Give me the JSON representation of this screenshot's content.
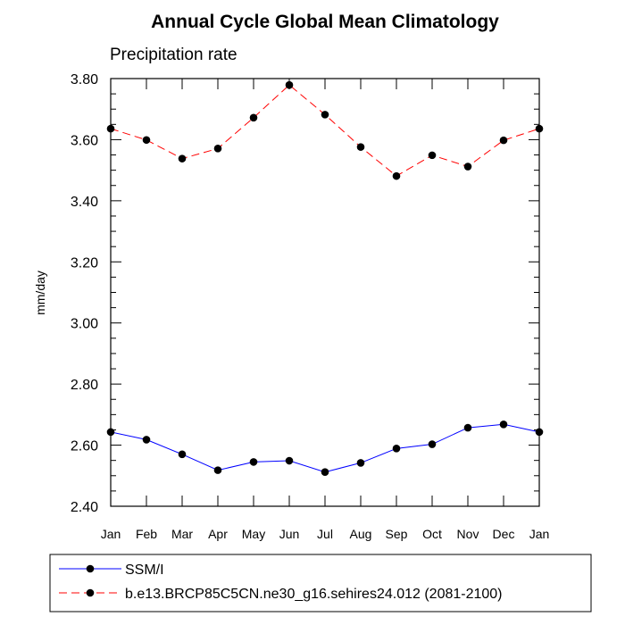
{
  "chart_data": {
    "type": "line",
    "title": "Annual Cycle Global Mean Climatology",
    "subtitle": "Precipitation rate",
    "ylabel": "mm/day",
    "xlabel": "",
    "categories": [
      "Jan",
      "Feb",
      "Mar",
      "Apr",
      "May",
      "Jun",
      "Jul",
      "Aug",
      "Sep",
      "Oct",
      "Nov",
      "Dec",
      "Jan"
    ],
    "ylim": [
      2.4,
      3.8
    ],
    "yticks": [
      "2.40",
      "2.60",
      "2.80",
      "3.00",
      "3.20",
      "3.40",
      "3.60",
      "3.80"
    ],
    "grid": false,
    "legend_position": "bottom",
    "series": [
      {
        "name": "SSM/I",
        "color": "#0000ff",
        "style": "solid",
        "values": [
          2.643,
          2.618,
          2.57,
          2.518,
          2.545,
          2.549,
          2.512,
          2.542,
          2.589,
          2.603,
          2.657,
          2.668,
          2.643
        ]
      },
      {
        "name": "b.e13.BRCP85C5CN.ne30_g16.sehires24.012 (2081-2100)",
        "color": "#ff0000",
        "style": "dashed",
        "values": [
          3.636,
          3.599,
          3.538,
          3.571,
          3.672,
          3.779,
          3.682,
          3.576,
          3.481,
          3.549,
          3.512,
          3.598,
          3.636
        ]
      }
    ]
  }
}
